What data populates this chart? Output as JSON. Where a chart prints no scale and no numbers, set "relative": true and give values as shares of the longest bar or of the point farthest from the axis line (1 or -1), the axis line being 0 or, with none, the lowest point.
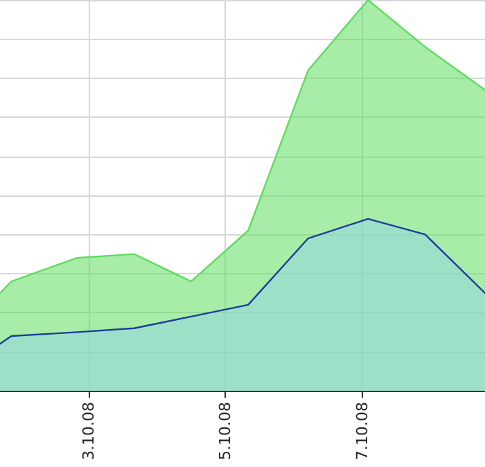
{
  "chart_data": {
    "type": "area",
    "relative": true,
    "x": [
      "--10-01T17:00",
      "--10-01T21:00",
      "--10-02T20:00",
      "--10-03T16:00",
      "--10-04T12:00",
      "--10-05T08:00",
      "--10-06T05:00",
      "--10-07T02:00",
      "--10-07T22:00",
      "--10-08T19:00"
    ],
    "series": [
      {
        "color": "#5fdc5f",
        "values": [
          0.25,
          0.28,
          0.34,
          0.35,
          0.28,
          0.41,
          0.82,
          1.0,
          0.88,
          0.77
        ]
      },
      {
        "color": "#1b3d9c",
        "values": [
          0.12,
          0.14,
          0.15,
          0.16,
          0.19,
          0.22,
          0.39,
          0.44,
          0.4,
          0.25
        ]
      }
    ],
    "xlim": [
      "--10-01T17:00",
      "--10-08T19:00"
    ],
    "xticks": [
      {
        "value": "--10-03",
        "label": "3.10.08"
      },
      {
        "value": "--10-05",
        "label": "5.10.08"
      },
      {
        "value": "--10-07",
        "label": "7.10.08"
      }
    ],
    "grid": true
  }
}
